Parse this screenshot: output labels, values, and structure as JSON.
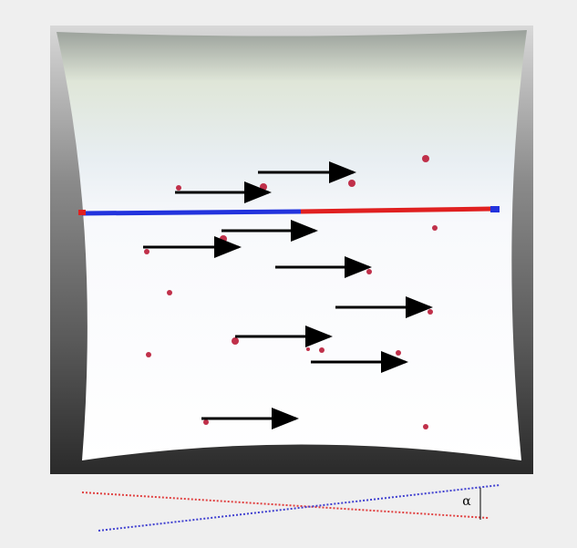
{
  "labels": {
    "angle": "α"
  }
}
